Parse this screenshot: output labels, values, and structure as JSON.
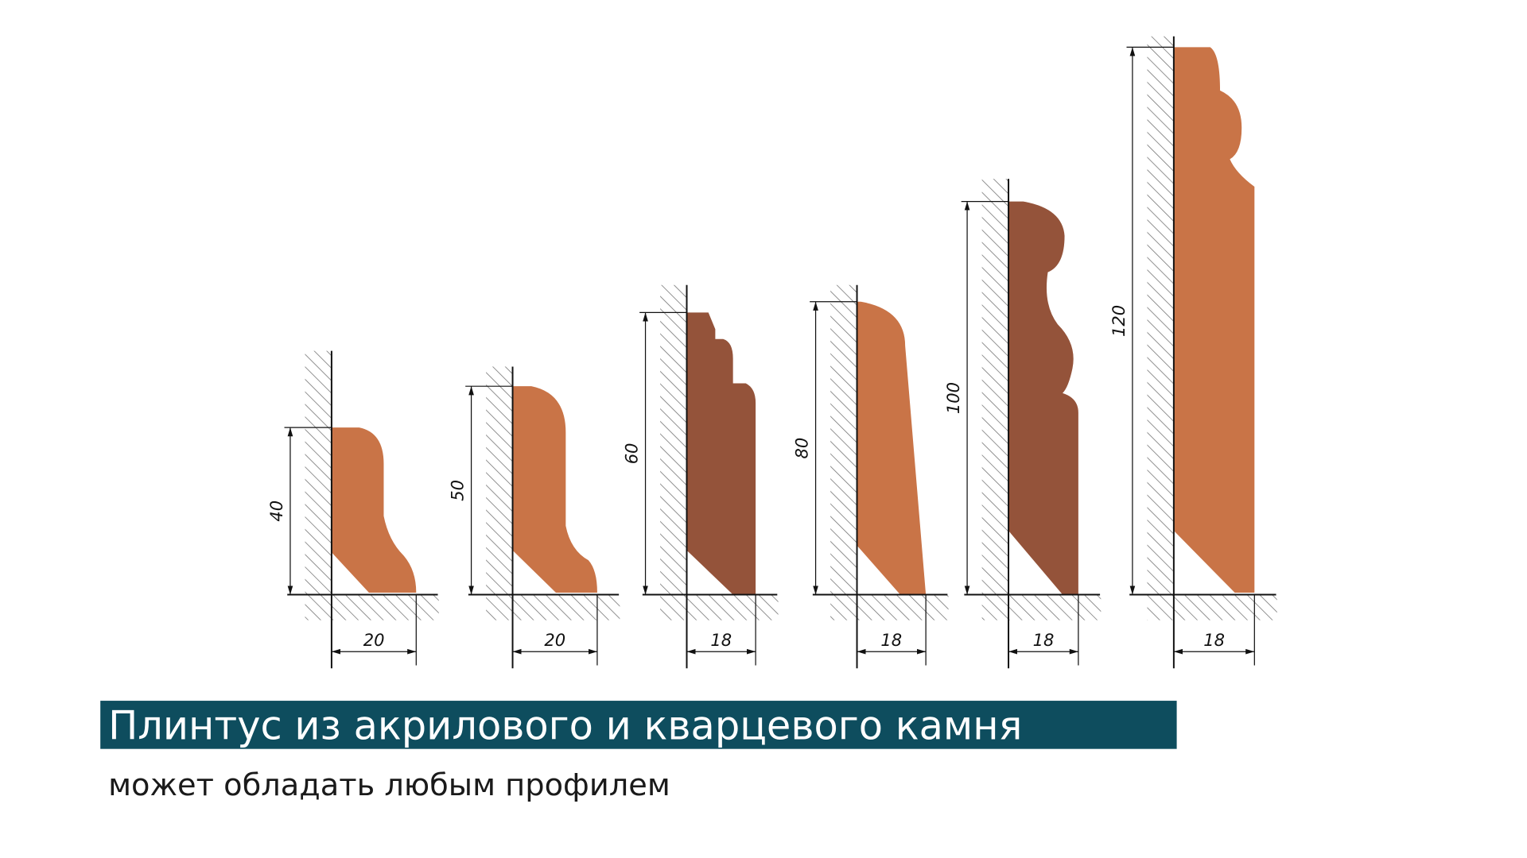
{
  "title": "Плинтус из акрилового и кварцевого камня",
  "subtitle": "может обладать любым профилем",
  "profiles": [
    {
      "height": "40",
      "width": "20"
    },
    {
      "height": "50",
      "width": "20"
    },
    {
      "height": "60",
      "width": "18"
    },
    {
      "height": "80",
      "width": "18"
    },
    {
      "height": "100",
      "width": "18"
    },
    {
      "height": "120",
      "width": "18"
    }
  ]
}
